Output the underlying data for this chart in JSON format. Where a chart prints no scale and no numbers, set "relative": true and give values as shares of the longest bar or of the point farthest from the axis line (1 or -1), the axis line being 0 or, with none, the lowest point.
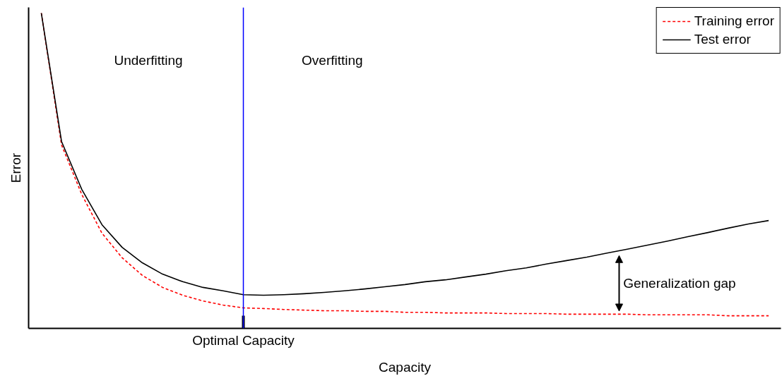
{
  "chart_data": {
    "type": "line",
    "relative": true,
    "xlabel": "Capacity",
    "ylabel": "Error",
    "categories": [
      null,
      null,
      null,
      null,
      null,
      null,
      null,
      null,
      null,
      null,
      null,
      null,
      null,
      null,
      null,
      null,
      null,
      null,
      null,
      null,
      null,
      null,
      null,
      null,
      null,
      null,
      null,
      null,
      null,
      null,
      null,
      null,
      null,
      null,
      null,
      null,
      null
    ],
    "series": [
      {
        "name": "Training error",
        "color": "#ff0000",
        "line_style": "dashed",
        "values": [
          1.0,
          0.582,
          0.425,
          0.302,
          0.224,
          0.168,
          0.13,
          0.105,
          0.087,
          0.074,
          0.065,
          0.063,
          0.06,
          0.058,
          0.056,
          0.056,
          0.054,
          0.054,
          0.051,
          0.051,
          0.049,
          0.049,
          0.049,
          0.047,
          0.047,
          0.047,
          0.045,
          0.045,
          0.045,
          0.045,
          0.043,
          0.043,
          0.043,
          0.043,
          0.04,
          0.04,
          0.04
        ]
      },
      {
        "name": "Test error",
        "color": "#000000",
        "line_style": "solid",
        "values": [
          1.0,
          0.593,
          0.441,
          0.329,
          0.257,
          0.208,
          0.172,
          0.148,
          0.13,
          0.119,
          0.107,
          0.105,
          0.107,
          0.11,
          0.114,
          0.119,
          0.125,
          0.132,
          0.139,
          0.148,
          0.154,
          0.163,
          0.172,
          0.183,
          0.192,
          0.204,
          0.215,
          0.226,
          0.239,
          0.251,
          0.264,
          0.277,
          0.291,
          0.304,
          0.318,
          0.331,
          0.342
        ]
      }
    ],
    "annotations": [
      "Underfitting",
      "Overfitting",
      "Generalization gap",
      "Optimal Capacity"
    ],
    "legend": "top right",
    "marker": "none"
  }
}
